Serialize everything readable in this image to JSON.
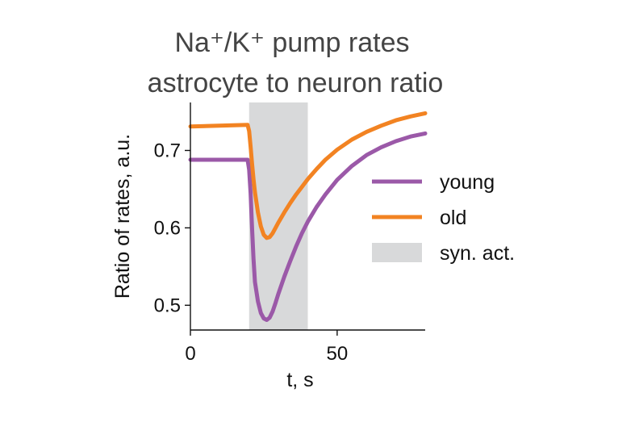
{
  "chart_data": {
    "type": "line",
    "title_line1": "Na⁺/K⁺ pump rates",
    "title_line2": "astrocyte to neuron ratio",
    "xlabel": "t, s",
    "ylabel": "Ratio of rates, a.u.",
    "xlim": [
      0,
      80
    ],
    "ylim": [
      0.468,
      0.762
    ],
    "xticks": [
      0,
      50
    ],
    "xtick_labels": [
      "0",
      "50"
    ],
    "yticks": [
      0.5,
      0.6,
      0.7
    ],
    "ytick_labels": [
      "0.5",
      "0.6",
      "0.7"
    ],
    "grid": false,
    "legend_position": "right",
    "span": {
      "label": "syn. act.",
      "x0": 20,
      "x1": 40,
      "color": "#d8d9da"
    },
    "series": [
      {
        "name": "young",
        "color": "#9b59a8",
        "x": [
          0,
          19.5,
          20,
          20.5,
          21,
          21.5,
          22,
          23,
          24,
          25,
          26,
          27,
          28,
          29,
          30,
          32,
          34,
          36,
          38,
          40,
          43,
          46,
          50,
          55,
          60,
          65,
          70,
          75,
          80
        ],
        "y": [
          0.688,
          0.688,
          0.675,
          0.645,
          0.6,
          0.56,
          0.53,
          0.505,
          0.49,
          0.483,
          0.481,
          0.484,
          0.492,
          0.503,
          0.515,
          0.537,
          0.557,
          0.576,
          0.593,
          0.608,
          0.627,
          0.643,
          0.662,
          0.68,
          0.694,
          0.704,
          0.712,
          0.718,
          0.722
        ]
      },
      {
        "name": "old",
        "color": "#f28322",
        "x": [
          0,
          19.5,
          20,
          20.5,
          21,
          21.5,
          22,
          23,
          24,
          25,
          26,
          27,
          28,
          29,
          30,
          32,
          34,
          36,
          38,
          40,
          43,
          46,
          50,
          55,
          60,
          65,
          70,
          75,
          80
        ],
        "y": [
          0.731,
          0.733,
          0.725,
          0.705,
          0.683,
          0.663,
          0.646,
          0.62,
          0.602,
          0.591,
          0.587,
          0.588,
          0.593,
          0.6,
          0.607,
          0.62,
          0.632,
          0.643,
          0.653,
          0.663,
          0.676,
          0.688,
          0.701,
          0.714,
          0.724,
          0.732,
          0.739,
          0.744,
          0.748
        ]
      }
    ]
  }
}
